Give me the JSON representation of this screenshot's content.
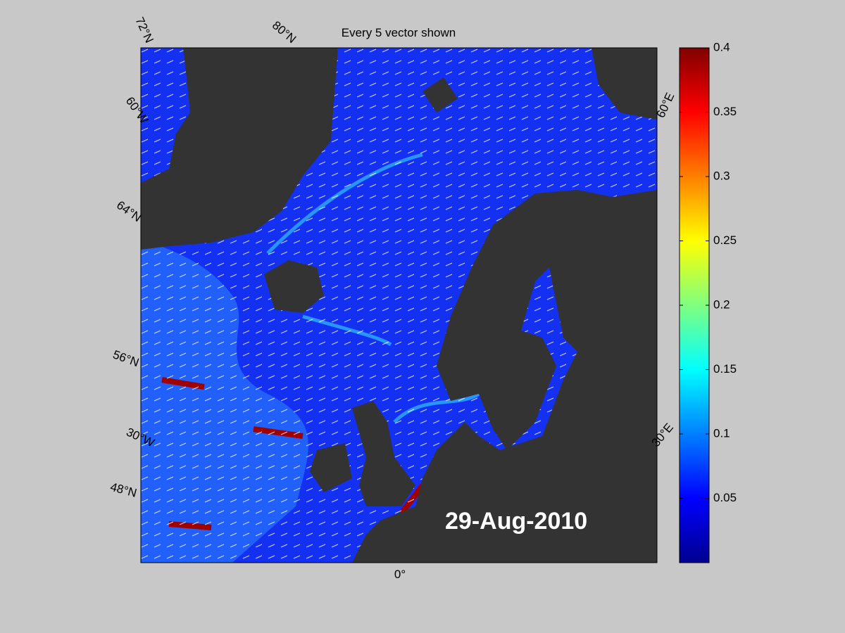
{
  "title": "Every 5 vector shown",
  "date_label": "29-Aug-2010",
  "graticule_labels": [
    "72°N",
    "80°N",
    "60°W",
    "64°N",
    "56°N",
    "30°W",
    "48°N",
    "0°",
    "30°E",
    "60°E"
  ],
  "colorbar": {
    "ylim": [
      0,
      0.4
    ],
    "ticks": [
      0.05,
      0.1,
      0.15,
      0.2,
      0.25,
      0.3,
      0.35,
      0.4
    ]
  }
}
